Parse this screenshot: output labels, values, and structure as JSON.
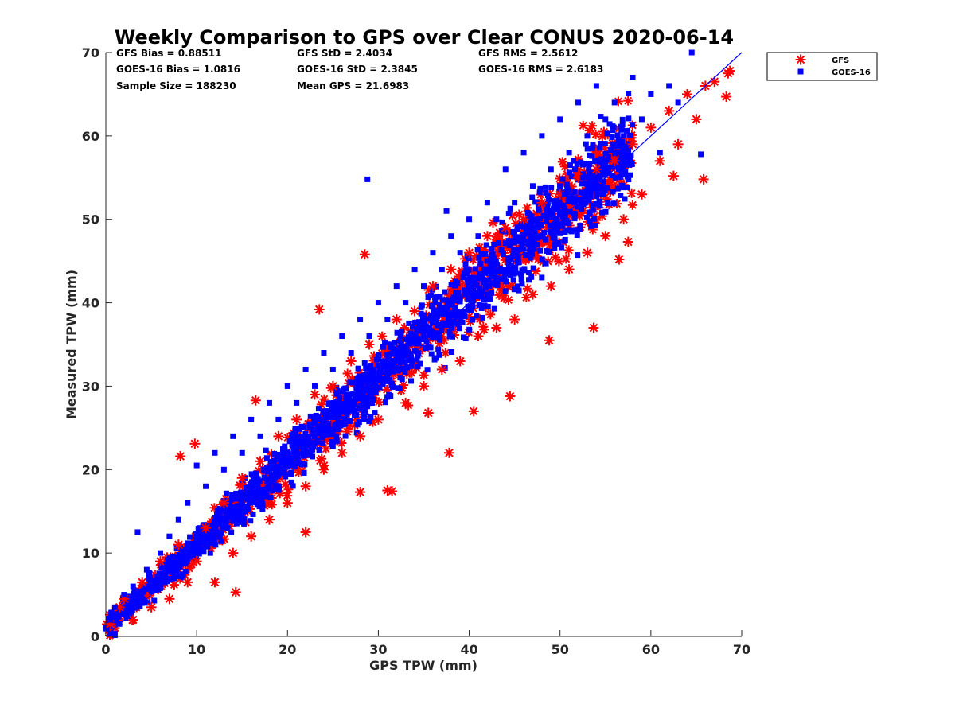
{
  "chart_data": {
    "type": "scatter",
    "title": "Weekly Comparison to GPS over Clear CONUS 2020-06-14",
    "xlabel": "GPS TPW (mm)",
    "ylabel": "Measured TPW (mm)",
    "xlim": [
      0,
      70
    ],
    "ylim": [
      0,
      70
    ],
    "xticks": [
      "0",
      "10",
      "20",
      "30",
      "40",
      "50",
      "60",
      "70"
    ],
    "yticks": [
      "0",
      "10",
      "20",
      "30",
      "40",
      "50",
      "60",
      "70"
    ],
    "grid": false,
    "legend_position": "outside top-right",
    "reference_line": {
      "x": [
        0,
        70
      ],
      "y": [
        0,
        70
      ]
    },
    "stats": [
      "GFS Bias = 0.88511",
      "GFS StD = 2.4034",
      "GFS RMS = 2.5612",
      "GOES-16 Bias = 1.0816",
      "GOES-16 StD = 2.3845",
      "GOES-16 RMS = 2.6183",
      "Sample Size = 188230",
      "Mean GPS = 21.6983"
    ],
    "series": [
      {
        "name": "GFS",
        "marker": "asterisk",
        "color": "#ff0000",
        "points": [
          [
            0.5,
            1.5
          ],
          [
            1.5,
            3.5
          ],
          [
            2,
            4.5
          ],
          [
            3,
            2
          ],
          [
            4,
            6.5
          ],
          [
            5,
            3.5
          ],
          [
            6,
            9
          ],
          [
            7,
            4.5
          ],
          [
            8,
            11
          ],
          [
            8.2,
            21.6
          ],
          [
            9,
            6.5
          ],
          [
            9.8,
            23.1
          ],
          [
            10,
            9
          ],
          [
            11,
            13
          ],
          [
            12,
            6.5
          ],
          [
            13,
            16
          ],
          [
            14,
            10
          ],
          [
            14.3,
            5.3
          ],
          [
            15,
            19
          ],
          [
            16,
            12
          ],
          [
            16.5,
            28.3
          ],
          [
            17,
            21
          ],
          [
            18,
            14
          ],
          [
            19,
            24
          ],
          [
            20,
            16
          ],
          [
            21,
            26
          ],
          [
            22,
            18
          ],
          [
            22,
            12.5
          ],
          [
            23,
            29
          ],
          [
            23.5,
            39.2
          ],
          [
            24,
            20
          ],
          [
            25,
            30
          ],
          [
            26,
            22
          ],
          [
            27,
            33
          ],
          [
            28,
            24
          ],
          [
            28,
            17.3
          ],
          [
            28.5,
            45.8
          ],
          [
            29,
            35
          ],
          [
            30,
            26
          ],
          [
            31,
            17.5
          ],
          [
            31.5,
            17.4
          ],
          [
            32,
            38
          ],
          [
            33,
            28
          ],
          [
            34,
            39
          ],
          [
            35,
            30
          ],
          [
            35.5,
            26.8
          ],
          [
            36,
            42
          ],
          [
            37,
            32
          ],
          [
            37.8,
            22
          ],
          [
            38,
            44
          ],
          [
            39,
            33
          ],
          [
            40,
            46
          ],
          [
            40.5,
            27
          ],
          [
            41,
            36
          ],
          [
            42,
            48
          ],
          [
            43,
            37
          ],
          [
            44,
            49
          ],
          [
            44.5,
            28.8
          ],
          [
            45,
            38
          ],
          [
            46,
            50
          ],
          [
            47,
            41
          ],
          [
            48,
            52
          ],
          [
            48.8,
            35.5
          ],
          [
            49,
            42
          ],
          [
            50,
            53
          ],
          [
            51,
            44
          ],
          [
            52,
            55
          ],
          [
            53,
            46
          ],
          [
            53.7,
            37
          ],
          [
            54,
            56
          ],
          [
            55,
            48
          ],
          [
            56,
            57
          ],
          [
            56.5,
            45.2
          ],
          [
            57,
            50
          ],
          [
            57.5,
            47.3
          ],
          [
            58,
            59
          ],
          [
            59,
            53
          ],
          [
            60,
            61
          ],
          [
            61,
            57
          ],
          [
            62,
            63
          ],
          [
            62.5,
            55.2
          ],
          [
            63,
            59
          ],
          [
            64,
            65
          ],
          [
            65,
            62
          ],
          [
            65.8,
            54.8
          ],
          [
            66,
            66
          ],
          [
            67,
            66.5
          ],
          [
            68.3,
            64.7
          ],
          [
            68.5,
            67.5
          ],
          [
            68.7,
            67.8
          ]
        ]
      },
      {
        "name": "GOES-16",
        "marker": "square",
        "color": "#0000ff",
        "points": [
          [
            0.5,
            2
          ],
          [
            1,
            3.5
          ],
          [
            1.5,
            1.5
          ],
          [
            2,
            5
          ],
          [
            2.5,
            3
          ],
          [
            3,
            6
          ],
          [
            3.5,
            12.5
          ],
          [
            4,
            4
          ],
          [
            4.5,
            8
          ],
          [
            5,
            5.5
          ],
          [
            6,
            10
          ],
          [
            6.5,
            6.5
          ],
          [
            7,
            12
          ],
          [
            7.5,
            8
          ],
          [
            8,
            14
          ],
          [
            8.5,
            9.5
          ],
          [
            9,
            16
          ],
          [
            10,
            12
          ],
          [
            10,
            20.5
          ],
          [
            11,
            18
          ],
          [
            11.5,
            10
          ],
          [
            12,
            22
          ],
          [
            12.5,
            15
          ],
          [
            13,
            20
          ],
          [
            14,
            24
          ],
          [
            14.5,
            17
          ],
          [
            15,
            22
          ],
          [
            16,
            26
          ],
          [
            16.5,
            19
          ],
          [
            17,
            24
          ],
          [
            18,
            28
          ],
          [
            18.5,
            21
          ],
          [
            19,
            26
          ],
          [
            20,
            30
          ],
          [
            20.5,
            23
          ],
          [
            21,
            28
          ],
          [
            22,
            32
          ],
          [
            22.5,
            25
          ],
          [
            23,
            30
          ],
          [
            24,
            34
          ],
          [
            24.5,
            27
          ],
          [
            25,
            32
          ],
          [
            26,
            36
          ],
          [
            26.5,
            29
          ],
          [
            27,
            34
          ],
          [
            28,
            38
          ],
          [
            28.5,
            31
          ],
          [
            28.8,
            54.8
          ],
          [
            29,
            36
          ],
          [
            30,
            40
          ],
          [
            30.5,
            33
          ],
          [
            31,
            38
          ],
          [
            32,
            42
          ],
          [
            32.5,
            35
          ],
          [
            33,
            40
          ],
          [
            34,
            44
          ],
          [
            34.5,
            37
          ],
          [
            35,
            42
          ],
          [
            36,
            46
          ],
          [
            36.5,
            39
          ],
          [
            37,
            44
          ],
          [
            37.5,
            51
          ],
          [
            38,
            48
          ],
          [
            38.5,
            41
          ],
          [
            39,
            46
          ],
          [
            40,
            50
          ],
          [
            40.5,
            43
          ],
          [
            41,
            48
          ],
          [
            42,
            52
          ],
          [
            42.5,
            45
          ],
          [
            43,
            50
          ],
          [
            44,
            56
          ],
          [
            44.5,
            47
          ],
          [
            45,
            52
          ],
          [
            46,
            58
          ],
          [
            46.5,
            49
          ],
          [
            47,
            54
          ],
          [
            48,
            60
          ],
          [
            48.5,
            51
          ],
          [
            49,
            56
          ],
          [
            50,
            62
          ],
          [
            50.5,
            53
          ],
          [
            51,
            58
          ],
          [
            52,
            64
          ],
          [
            52.5,
            55
          ],
          [
            53,
            60
          ],
          [
            54,
            66
          ],
          [
            54.5,
            57
          ],
          [
            55,
            62
          ],
          [
            56,
            64
          ],
          [
            56.5,
            59
          ],
          [
            57,
            60
          ],
          [
            58,
            67
          ],
          [
            59,
            62
          ],
          [
            60,
            65
          ],
          [
            61,
            58
          ],
          [
            62,
            66
          ],
          [
            63,
            64
          ],
          [
            64.5,
            70
          ],
          [
            65.5,
            57.8
          ]
        ]
      }
    ]
  }
}
